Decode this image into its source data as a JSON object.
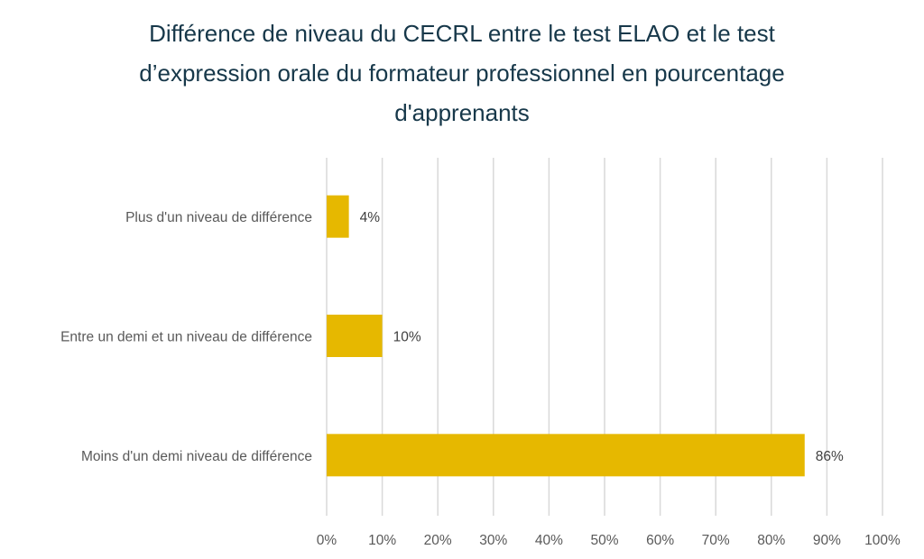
{
  "chart_data": {
    "type": "bar",
    "orientation": "horizontal",
    "title": [
      "Différence de niveau du CECRL entre le test ELAO et le test",
      "d’expression orale du formateur professionnel en pourcentage",
      "d'apprenants"
    ],
    "categories": [
      "Plus d'un niveau de différence",
      "Entre un demi et un niveau de différence",
      "Moins d'un demi niveau de différence"
    ],
    "values": [
      4,
      10,
      86
    ],
    "data_labels": [
      "4%",
      "10%",
      "86%"
    ],
    "xlim": [
      0,
      100
    ],
    "xticks": [
      0,
      10,
      20,
      30,
      40,
      50,
      60,
      70,
      80,
      90,
      100
    ],
    "xtick_labels": [
      "0%",
      "10%",
      "20%",
      "30%",
      "40%",
      "50%",
      "60%",
      "70%",
      "80%",
      "90%",
      "100%"
    ],
    "grid": "vertical",
    "legend": "none",
    "colors": {
      "bar": "#E6B800",
      "grid": "#D9D9D9",
      "title": "#17384A",
      "text": "#595959"
    }
  }
}
